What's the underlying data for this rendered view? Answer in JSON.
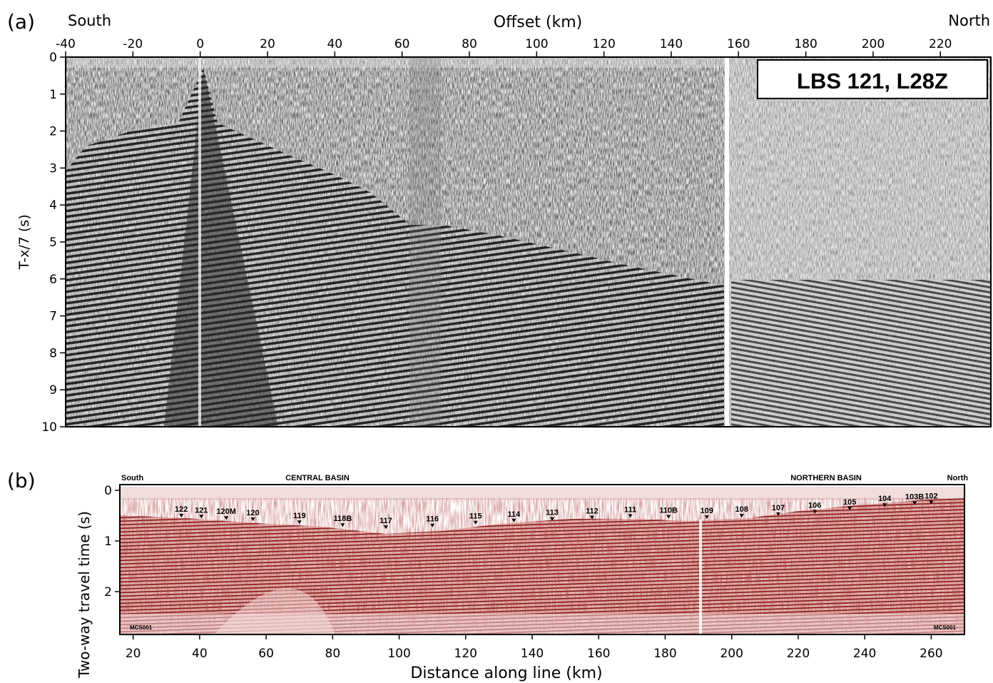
{
  "panel_a": {
    "panel_label": "(a)",
    "left_label": "South",
    "right_label": "North",
    "x_title": "Offset (km)",
    "y_title": "T-x/7 (s)",
    "station_title": "LBS 121, L28Z",
    "x_ticks": [
      "-40",
      "-20",
      "0",
      "20",
      "40",
      "60",
      "80",
      "100",
      "120",
      "140",
      "160",
      "180",
      "200",
      "220"
    ],
    "y_ticks": [
      "0",
      "1",
      "2",
      "3",
      "4",
      "5",
      "6",
      "7",
      "8",
      "9",
      "10"
    ]
  },
  "panel_b": {
    "panel_label": "(b)",
    "left_label": "South",
    "right_label": "North",
    "basin_central": "CENTRAL BASIN",
    "basin_northern": "NORTHERN BASIN",
    "x_title": "Distance along line (km)",
    "y_title": "Two-way travel time (s)",
    "x_ticks": [
      "20",
      "40",
      "60",
      "80",
      "100",
      "120",
      "140",
      "160",
      "180",
      "200",
      "220",
      "240",
      "260"
    ],
    "y_ticks": [
      "0",
      "1",
      "2"
    ],
    "line_id_left": "MCS001",
    "line_id_right": "MCS001",
    "stations": [
      {
        "label": "122",
        "km": 34.5
      },
      {
        "label": "121",
        "km": 40.5
      },
      {
        "label": "120M",
        "km": 48
      },
      {
        "label": "120",
        "km": 56
      },
      {
        "label": "119",
        "km": 70
      },
      {
        "label": "118B",
        "km": 83
      },
      {
        "label": "117",
        "km": 96
      },
      {
        "label": "116",
        "km": 110
      },
      {
        "label": "115",
        "km": 123
      },
      {
        "label": "114",
        "km": 134.5
      },
      {
        "label": "113",
        "km": 146
      },
      {
        "label": "112",
        "km": 158
      },
      {
        "label": "111",
        "km": 169.5
      },
      {
        "label": "110B",
        "km": 181
      },
      {
        "label": "109",
        "km": 192.5
      },
      {
        "label": "108",
        "km": 203
      },
      {
        "label": "107",
        "km": 214
      },
      {
        "label": "106",
        "km": 225
      },
      {
        "label": "105",
        "km": 235.5
      },
      {
        "label": "104",
        "km": 246
      },
      {
        "label": "103B",
        "km": 255
      },
      {
        "label": "102",
        "km": 260
      }
    ]
  }
}
